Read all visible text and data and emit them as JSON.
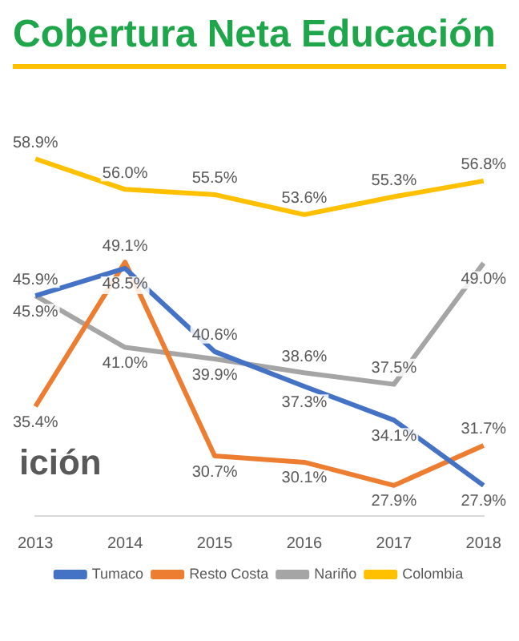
{
  "chart_data": {
    "type": "line",
    "title": "Cobertura Neta Educación",
    "annotations": [
      "ición"
    ],
    "categories": [
      "2013",
      "2014",
      "2015",
      "2016",
      "2017",
      "2018"
    ],
    "series": [
      {
        "name": "Tumaco",
        "color": "#4472c4",
        "values": [
          45.9,
          48.5,
          40.6,
          37.3,
          34.1,
          27.9
        ],
        "value_labels": [
          "45.9%",
          "48.5%",
          "40.6%",
          "37.3%",
          "34.1%",
          "27.9%"
        ]
      },
      {
        "name": "Resto Costa",
        "color": "#ed7d31",
        "values": [
          35.4,
          49.1,
          30.7,
          30.1,
          27.9,
          31.7
        ],
        "value_labels": [
          "35.4%",
          "49.1%",
          "30.7%",
          "30.1%",
          "27.9%",
          "31.7%"
        ]
      },
      {
        "name": "Nariño",
        "color": "#a5a5a5",
        "values": [
          45.9,
          41.0,
          39.9,
          38.6,
          37.5,
          49.0
        ],
        "value_labels": [
          "45.9%",
          "41.0%",
          "39.9%",
          "38.6%",
          "37.5%",
          "49.0%"
        ]
      },
      {
        "name": "Colombia",
        "color": "#ffc000",
        "values": [
          58.9,
          56.0,
          55.5,
          53.6,
          55.3,
          56.8
        ],
        "value_labels": [
          "58.9%",
          "56.0%",
          "55.5%",
          "53.6%",
          "55.3%",
          "56.8%"
        ]
      }
    ],
    "legend": "bottom",
    "marker": "none",
    "grid": false,
    "tick_labels": "x"
  }
}
